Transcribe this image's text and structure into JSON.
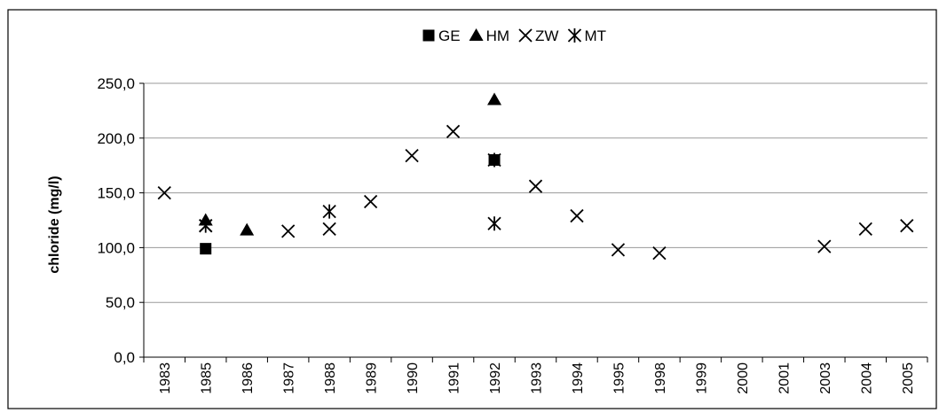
{
  "chart_data": {
    "type": "scatter",
    "title": "",
    "xlabel": "",
    "ylabel": "chloride (mg/l)",
    "categories": [
      "1983",
      "1985",
      "1986",
      "1987",
      "1988",
      "1989",
      "1990",
      "1991",
      "1992",
      "1993",
      "1994",
      "1995",
      "1998",
      "1999",
      "2000",
      "2001",
      "2003",
      "2004",
      "2005"
    ],
    "ylim": [
      0,
      250
    ],
    "yticks": [
      "0,0",
      "50,0",
      "100,0",
      "150,0",
      "200,0",
      "250,0"
    ],
    "ytick_values": [
      0,
      50,
      100,
      150,
      200,
      250
    ],
    "grid": true,
    "legend_position": "top",
    "series": [
      {
        "name": "GE",
        "marker": "square",
        "points": [
          {
            "x": "1985",
            "y": 99
          },
          {
            "x": "1992",
            "y": 180
          }
        ]
      },
      {
        "name": "HM",
        "marker": "triangle",
        "points": [
          {
            "x": "1985",
            "y": 125
          },
          {
            "x": "1986",
            "y": 116
          },
          {
            "x": "1992",
            "y": 235
          }
        ]
      },
      {
        "name": "ZW",
        "marker": "x",
        "points": [
          {
            "x": "1983",
            "y": 150
          },
          {
            "x": "1985",
            "y": 120
          },
          {
            "x": "1987",
            "y": 115
          },
          {
            "x": "1988",
            "y": 117
          },
          {
            "x": "1989",
            "y": 142
          },
          {
            "x": "1990",
            "y": 184
          },
          {
            "x": "1991",
            "y": 206
          },
          {
            "x": "1993",
            "y": 156
          },
          {
            "x": "1994",
            "y": 129
          },
          {
            "x": "1995",
            "y": 98
          },
          {
            "x": "1998",
            "y": 95
          },
          {
            "x": "2003",
            "y": 101
          },
          {
            "x": "2004",
            "y": 117
          },
          {
            "x": "2005",
            "y": 120
          }
        ]
      },
      {
        "name": "MT",
        "marker": "asterisk",
        "points": [
          {
            "x": "1985",
            "y": 120
          },
          {
            "x": "1988",
            "y": 133
          },
          {
            "x": "1992",
            "y": 180
          },
          {
            "x": "1992",
            "y": 122
          }
        ]
      }
    ]
  }
}
